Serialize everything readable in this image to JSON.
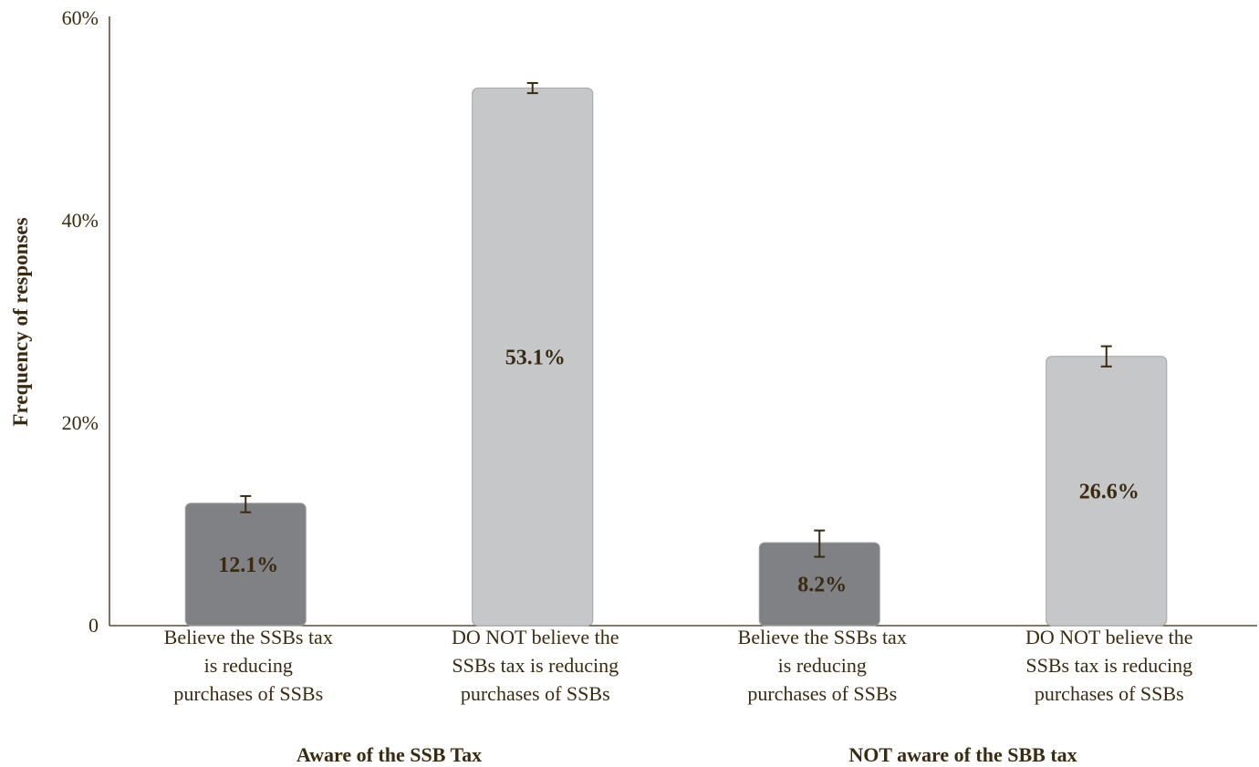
{
  "chart_data": {
    "type": "bar",
    "ylabel": "Frequency of responses",
    "ylim": [
      0,
      60
    ],
    "yticks": [
      {
        "value": 0,
        "label": "0"
      },
      {
        "value": 20,
        "label": "20%"
      },
      {
        "value": 40,
        "label": "40%"
      },
      {
        "value": 60,
        "label": "60%"
      }
    ],
    "categories": [
      {
        "lines": [
          "Believe the SSBs tax",
          "is reducing",
          "purchases of SSBs"
        ],
        "group": 0
      },
      {
        "lines": [
          "DO NOT believe the",
          "SSBs tax is reducing",
          "purchases of SSBs"
        ],
        "group": 0
      },
      {
        "lines": [
          "Believe the SSBs tax",
          "is reducing",
          "purchases of SSBs"
        ],
        "group": 1
      },
      {
        "lines": [
          "DO NOT believe the",
          "SSBs tax is reducing",
          "purchases of SSBs"
        ],
        "group": 1
      }
    ],
    "values": [
      12.1,
      53.1,
      8.2,
      26.6
    ],
    "data_labels": [
      "12.1%",
      "53.1%",
      "8.2%",
      "26.6%"
    ],
    "error_bars": [
      {
        "low": 11.2,
        "high": 12.8
      },
      {
        "low": 52.6,
        "high": 53.6
      },
      {
        "low": 6.8,
        "high": 9.4
      },
      {
        "low": 25.6,
        "high": 27.6
      }
    ],
    "bar_colors": [
      "#808184",
      "#c6c7c9",
      "#808184",
      "#c6c7c9"
    ],
    "groups": [
      "Aware of the SSB Tax",
      "NOT aware of the SBB tax"
    ],
    "grid": false,
    "legend": "none"
  }
}
